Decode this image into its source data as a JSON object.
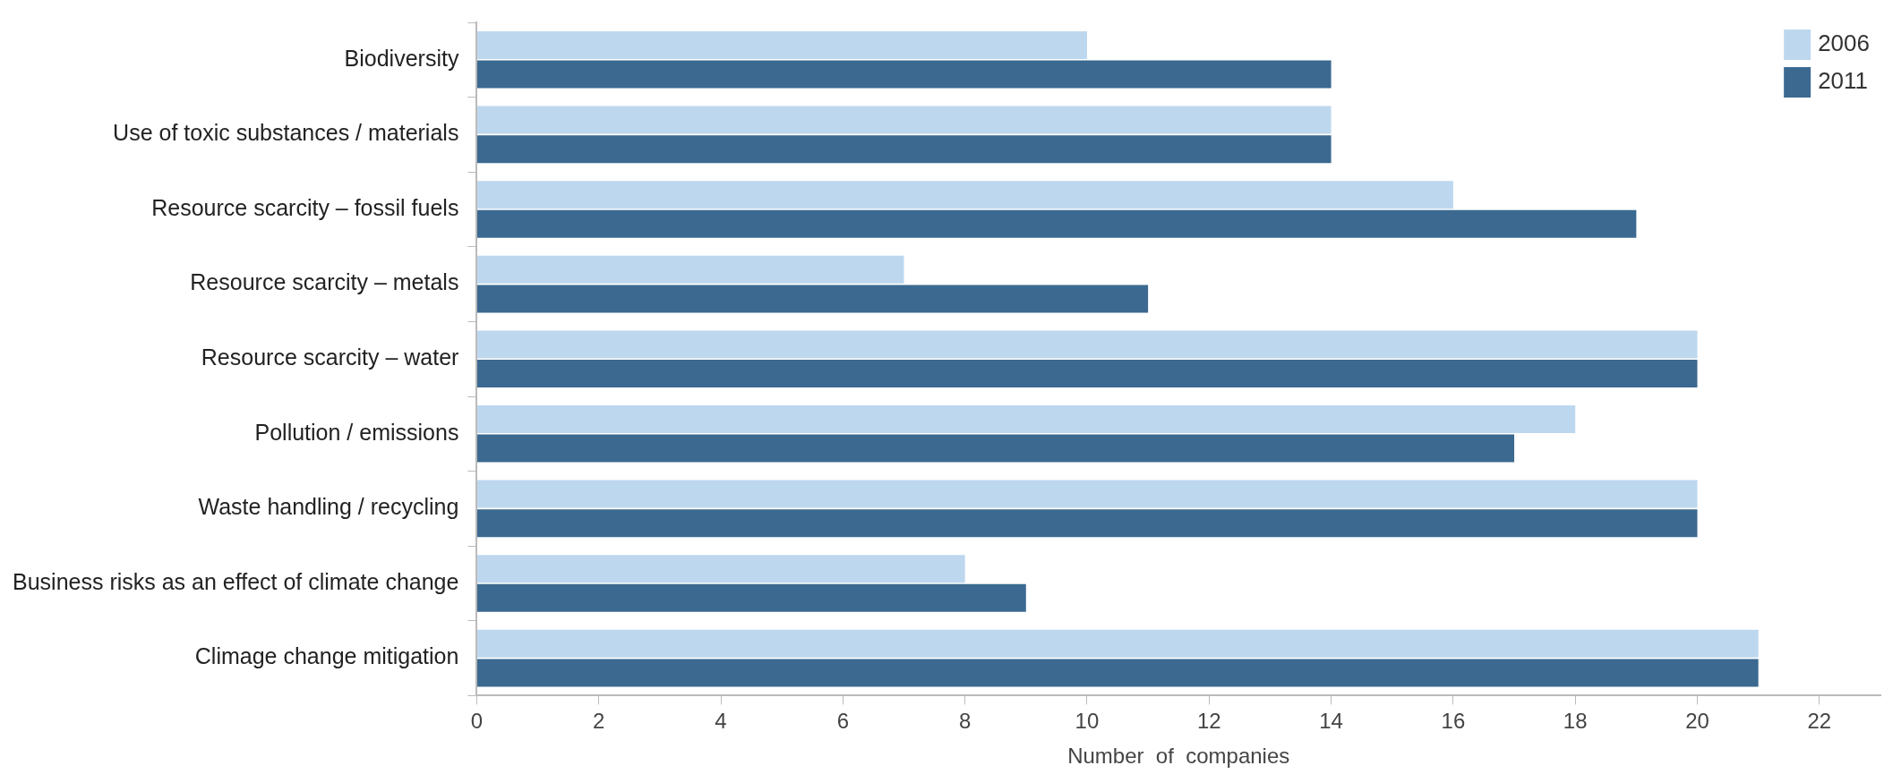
{
  "chart_data": {
    "type": "bar",
    "orientation": "horizontal",
    "xlabel": "Number  of  companies",
    "categories": [
      "Biodiversity",
      "Use of toxic substances / materials",
      "Resource scarcity – fossil fuels",
      "Resource scarcity – metals",
      "Resource scarcity – water",
      "Pollution / emissions",
      "Waste handling / recycling",
      "Business risks as an effect of climate change",
      "Climage change mitigation"
    ],
    "series": [
      {
        "name": "2006",
        "color": "#bdd7ee",
        "values": [
          10,
          14,
          16,
          7,
          20,
          18,
          20,
          8,
          21
        ]
      },
      {
        "name": "2011",
        "color": "#3b6990",
        "values": [
          14,
          14,
          19,
          11,
          20,
          17,
          20,
          9,
          21
        ]
      }
    ],
    "xlim": [
      0,
      23
    ],
    "xticks": [
      0,
      2,
      4,
      6,
      8,
      10,
      12,
      14,
      16,
      18,
      20,
      22
    ],
    "grid": false,
    "legend": "top right"
  }
}
